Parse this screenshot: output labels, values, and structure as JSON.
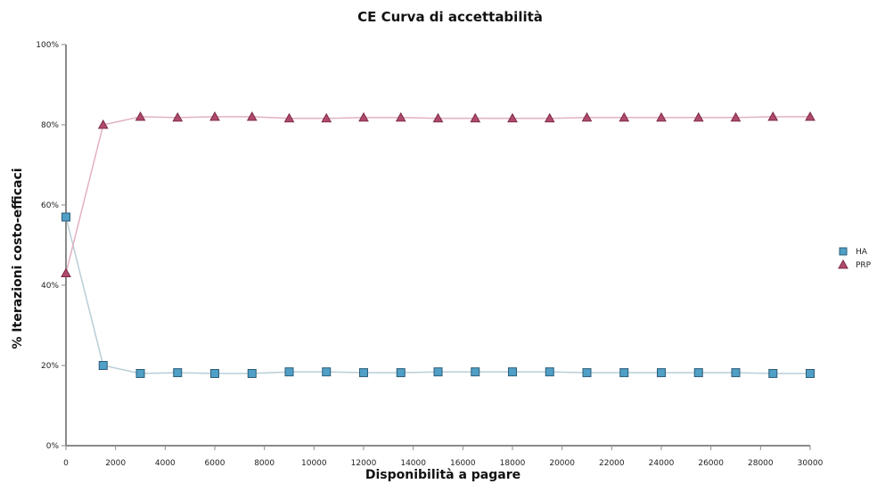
{
  "chart_data": {
    "type": "line",
    "title": "CE Curva di accettabilità",
    "xlabel": "Disponibilità a pagare",
    "ylabel": "% Iterazioni costo-efficaci",
    "x": [
      0,
      1500,
      3000,
      4500,
      6000,
      7500,
      9000,
      10500,
      12000,
      13500,
      15000,
      16500,
      18000,
      19500,
      21000,
      22500,
      24000,
      25500,
      27000,
      28500,
      30000
    ],
    "xlim": [
      0,
      30000
    ],
    "ylim": [
      0,
      100
    ],
    "x_ticks": [
      "0",
      "2000",
      "4000",
      "6000",
      "8000",
      "10000",
      "12000",
      "14000",
      "16000",
      "18000",
      "20000",
      "22000",
      "24000",
      "26000",
      "28000",
      "30000"
    ],
    "y_ticks": [
      "0%",
      "20%",
      "40%",
      "60%",
      "80%",
      "100%"
    ],
    "grid": false,
    "legend_position": "right",
    "series": [
      {
        "name": "HA",
        "marker": "square",
        "line_color": "#b9cdd8",
        "marker_fill": "#4f9fc6",
        "marker_stroke": "#2c5d78",
        "values": [
          57,
          20,
          18,
          18.2,
          18,
          18,
          18.4,
          18.4,
          18.2,
          18.2,
          18.4,
          18.4,
          18.4,
          18.4,
          18.2,
          18.2,
          18.2,
          18.2,
          18.2,
          18,
          18
        ]
      },
      {
        "name": "PRP",
        "marker": "triangle",
        "line_color": "#e2b1c0",
        "marker_fill": "#b04a6c",
        "marker_stroke": "#7c2a45",
        "values": [
          43,
          80,
          82,
          81.8,
          82,
          82,
          81.6,
          81.6,
          81.8,
          81.8,
          81.6,
          81.6,
          81.6,
          81.6,
          81.8,
          81.8,
          81.8,
          81.8,
          81.8,
          82,
          82
        ]
      }
    ]
  }
}
